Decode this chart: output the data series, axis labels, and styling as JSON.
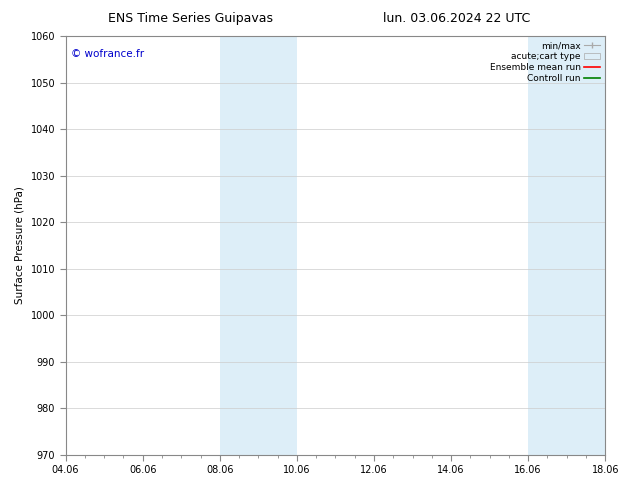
{
  "title_left": "ENS Time Series Guipavas",
  "title_right": "lun. 03.06.2024 22 UTC",
  "ylabel": "Surface Pressure (hPa)",
  "xlabel_ticks": [
    "04.06",
    "06.06",
    "08.06",
    "10.06",
    "12.06",
    "14.06",
    "16.06",
    "18.06"
  ],
  "xtick_positions": [
    0,
    2,
    4,
    6,
    8,
    10,
    12,
    14
  ],
  "ylim": [
    970,
    1060
  ],
  "xlim": [
    0,
    14
  ],
  "yticks": [
    970,
    980,
    990,
    1000,
    1010,
    1020,
    1030,
    1040,
    1050,
    1060
  ],
  "shaded_bands": [
    {
      "x_start": 4,
      "x_end": 6,
      "color": "#ddeef8"
    },
    {
      "x_start": 12,
      "x_end": 14,
      "color": "#ddeef8"
    }
  ],
  "watermark": "© wofrance.fr",
  "watermark_color": "#0000cc",
  "background_color": "#ffffff",
  "grid_color": "#cccccc",
  "title_fontsize": 9,
  "label_fontsize": 7.5,
  "tick_fontsize": 7,
  "legend_fontsize": 6.5,
  "spine_color": "#888888"
}
